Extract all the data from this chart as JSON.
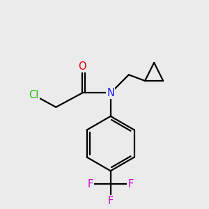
{
  "bg_color": "#ebebeb",
  "atom_colors": {
    "C": "#000000",
    "N": "#1a1aff",
    "O": "#dd0000",
    "Cl": "#22bb00",
    "F": "#cc00cc"
  },
  "bond_color": "#000000",
  "bond_width": 1.6,
  "font_size": 10.5
}
